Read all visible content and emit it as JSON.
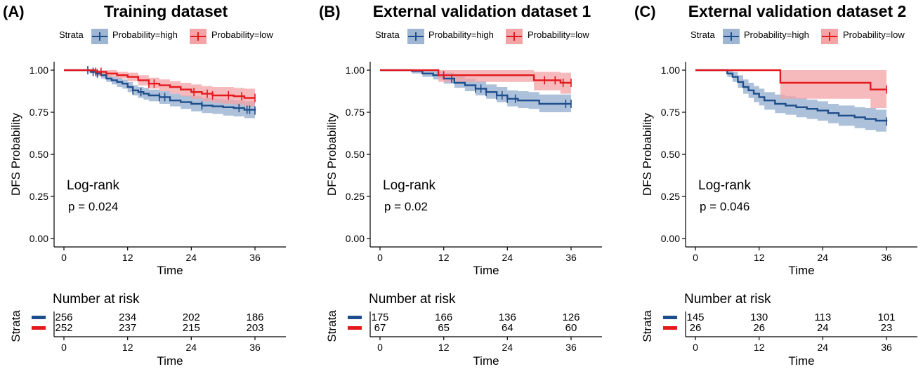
{
  "colors": {
    "high": "#1f4e8c",
    "low": "#e3191c",
    "high_band": "#9fb6d3",
    "low_band": "#f4a3a6"
  },
  "legend": {
    "title": "Strata",
    "high_label": "Probability=high",
    "low_label": "Probability=low"
  },
  "risk_table_title": "Number at risk",
  "chart_data": [
    {
      "type": "line",
      "panel": "(A)",
      "title": "Training dataset",
      "xlabel": "Time",
      "ylabel": "DFS Probability",
      "xticks": [
        0,
        12,
        24,
        36
      ],
      "yticks": [
        "0.00",
        "0.25",
        "0.50",
        "0.75",
        "1.00"
      ],
      "xlim": [
        0,
        36
      ],
      "ylim": [
        0,
        1
      ],
      "annotation": {
        "line1": "Log-rank",
        "line2": "p = 0.024"
      },
      "series": [
        {
          "name": "Probability=high",
          "x": [
            0,
            4,
            5,
            6,
            7,
            8,
            9,
            10,
            11,
            12,
            13,
            14,
            15,
            16,
            18,
            20,
            22,
            24,
            26,
            28,
            30,
            32,
            34,
            36
          ],
          "y": [
            1.0,
            1.0,
            0.99,
            0.98,
            0.97,
            0.95,
            0.94,
            0.93,
            0.92,
            0.9,
            0.88,
            0.87,
            0.86,
            0.85,
            0.84,
            0.82,
            0.81,
            0.8,
            0.79,
            0.785,
            0.78,
            0.775,
            0.765,
            0.76
          ],
          "lower": [
            1.0,
            1.0,
            0.98,
            0.965,
            0.95,
            0.93,
            0.915,
            0.9,
            0.89,
            0.87,
            0.85,
            0.835,
            0.825,
            0.815,
            0.8,
            0.785,
            0.77,
            0.755,
            0.745,
            0.74,
            0.73,
            0.725,
            0.715,
            0.71
          ],
          "upper": [
            1.0,
            1.0,
            1.0,
            0.995,
            0.985,
            0.97,
            0.96,
            0.955,
            0.945,
            0.93,
            0.91,
            0.9,
            0.895,
            0.885,
            0.875,
            0.86,
            0.85,
            0.845,
            0.835,
            0.83,
            0.825,
            0.82,
            0.815,
            0.81
          ],
          "censor_x": [
            4.5,
            5.5,
            6.3,
            13,
            14.5,
            18,
            19,
            26,
            33,
            34.5,
            35,
            36
          ],
          "risk": [
            256,
            234,
            202,
            186
          ]
        },
        {
          "name": "Probability=low",
          "x": [
            0,
            6,
            8,
            10,
            12,
            14,
            16,
            18,
            20,
            22,
            24,
            26,
            28,
            30,
            32,
            34,
            36
          ],
          "y": [
            1.0,
            0.99,
            0.98,
            0.97,
            0.96,
            0.94,
            0.92,
            0.91,
            0.9,
            0.885,
            0.87,
            0.86,
            0.85,
            0.85,
            0.845,
            0.835,
            0.835
          ],
          "lower": [
            1.0,
            0.975,
            0.96,
            0.95,
            0.935,
            0.91,
            0.89,
            0.875,
            0.86,
            0.845,
            0.83,
            0.815,
            0.805,
            0.8,
            0.795,
            0.785,
            0.78
          ],
          "upper": [
            1.0,
            1.0,
            1.0,
            0.99,
            0.985,
            0.97,
            0.955,
            0.945,
            0.935,
            0.925,
            0.915,
            0.905,
            0.9,
            0.9,
            0.895,
            0.89,
            0.885
          ],
          "censor_x": [
            6,
            7,
            16,
            17,
            24.5,
            27,
            28,
            31,
            33.5,
            36
          ],
          "risk": [
            252,
            237,
            215,
            203
          ]
        }
      ]
    },
    {
      "type": "line",
      "panel": "(B)",
      "title": "External validation dataset 1",
      "xlabel": "Time",
      "ylabel": "DFS Probability",
      "xticks": [
        0,
        12,
        24,
        36
      ],
      "yticks": [
        "0.00",
        "0.25",
        "0.50",
        "0.75",
        "1.00"
      ],
      "xlim": [
        0,
        36
      ],
      "ylim": [
        0,
        1
      ],
      "annotation": {
        "line1": "Log-rank",
        "line2": "p = 0.02"
      },
      "series": [
        {
          "name": "Probability=high",
          "x": [
            0,
            6,
            8,
            10,
            12,
            14,
            16,
            18,
            20,
            22,
            24,
            26,
            28,
            30,
            32,
            34,
            36
          ],
          "y": [
            1.0,
            0.995,
            0.98,
            0.97,
            0.95,
            0.925,
            0.91,
            0.89,
            0.87,
            0.85,
            0.83,
            0.82,
            0.82,
            0.8,
            0.8,
            0.8,
            0.8
          ],
          "lower": [
            1.0,
            0.98,
            0.96,
            0.945,
            0.92,
            0.895,
            0.875,
            0.85,
            0.83,
            0.81,
            0.785,
            0.775,
            0.77,
            0.75,
            0.75,
            0.75,
            0.75
          ],
          "upper": [
            1.0,
            1.0,
            1.0,
            0.995,
            0.985,
            0.965,
            0.95,
            0.935,
            0.915,
            0.9,
            0.88,
            0.875,
            0.87,
            0.855,
            0.855,
            0.855,
            0.855
          ],
          "censor_x": [
            13.5,
            18,
            19,
            20,
            22,
            23,
            24,
            25.5,
            35,
            36
          ],
          "risk": [
            175,
            166,
            136,
            126
          ]
        },
        {
          "name": "Probability=low",
          "x": [
            0,
            10,
            11,
            28,
            29,
            34,
            36
          ],
          "y": [
            1.0,
            1.0,
            0.97,
            0.97,
            0.94,
            0.925,
            0.925
          ],
          "lower": [
            1.0,
            1.0,
            0.93,
            0.93,
            0.88,
            0.86,
            0.86
          ],
          "upper": [
            1.0,
            1.0,
            1.0,
            1.0,
            0.99,
            0.985,
            0.985
          ],
          "censor_x": [
            12,
            31,
            33,
            34.5,
            36
          ],
          "risk": [
            67,
            65,
            64,
            60
          ]
        }
      ]
    },
    {
      "type": "line",
      "panel": "(C)",
      "title": "External validation dataset 2",
      "xlabel": "Time",
      "ylabel": "DFS Probability",
      "xticks": [
        0,
        12,
        24,
        36
      ],
      "yticks": [
        "0.00",
        "0.25",
        "0.50",
        "0.75",
        "1.00"
      ],
      "xlim": [
        0,
        36
      ],
      "ylim": [
        0,
        1
      ],
      "annotation": {
        "line1": "Log-rank",
        "line2": "p = 0.046"
      },
      "series": [
        {
          "name": "Probability=high",
          "x": [
            0,
            6,
            7,
            8,
            9,
            10,
            11,
            12,
            13,
            15,
            17,
            19,
            21,
            23,
            25,
            27,
            30,
            32,
            34,
            36
          ],
          "y": [
            1.0,
            0.98,
            0.96,
            0.93,
            0.9,
            0.88,
            0.86,
            0.84,
            0.82,
            0.8,
            0.79,
            0.78,
            0.77,
            0.76,
            0.745,
            0.73,
            0.72,
            0.71,
            0.7,
            0.695
          ],
          "lower": [
            1.0,
            0.96,
            0.93,
            0.895,
            0.86,
            0.835,
            0.81,
            0.79,
            0.765,
            0.745,
            0.735,
            0.72,
            0.71,
            0.7,
            0.685,
            0.67,
            0.655,
            0.645,
            0.635,
            0.625
          ],
          "upper": [
            1.0,
            1.0,
            0.99,
            0.97,
            0.945,
            0.925,
            0.905,
            0.89,
            0.87,
            0.855,
            0.845,
            0.835,
            0.825,
            0.815,
            0.8,
            0.79,
            0.78,
            0.775,
            0.765,
            0.76
          ],
          "censor_x": [
            36
          ],
          "risk": [
            145,
            130,
            113,
            101
          ]
        },
        {
          "name": "Probability=low",
          "x": [
            0,
            16,
            33,
            36
          ],
          "y": [
            1.0,
            0.925,
            0.885,
            0.885
          ],
          "lower": [
            1.0,
            0.83,
            0.775,
            0.775
          ],
          "upper": [
            1.0,
            1.0,
            1.0,
            1.0
          ],
          "censor_x": [
            36
          ],
          "risk": [
            26,
            26,
            24,
            23
          ]
        }
      ]
    }
  ]
}
